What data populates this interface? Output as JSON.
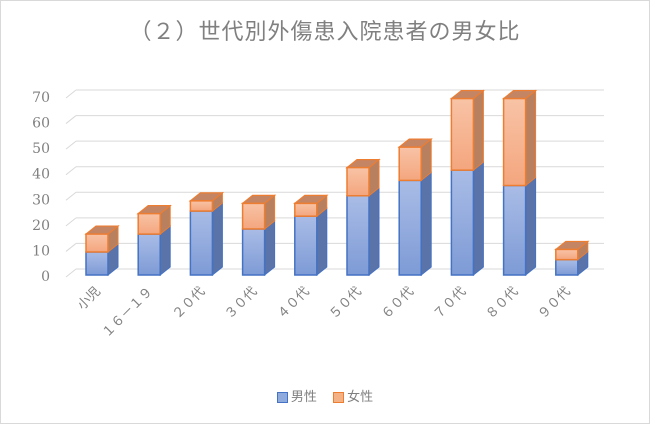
{
  "chart_data": {
    "type": "bar",
    "subtype": "stacked-3d-column",
    "title": "（２）世代別外傷患入院患者の男女比",
    "xlabel": "",
    "ylabel": "",
    "ylim": [
      0,
      70
    ],
    "yticks": [
      0,
      10,
      20,
      30,
      40,
      50,
      60,
      70
    ],
    "grid": true,
    "legend_position": "bottom",
    "categories": [
      "小児",
      "１６－１９",
      "２０代",
      "３０代",
      "４０代",
      "５０代",
      "６０代",
      "７０代",
      "８０代",
      "９０代"
    ],
    "series": [
      {
        "name": "男性",
        "color": "#8faadc",
        "values": [
          9,
          16,
          25,
          18,
          23,
          31,
          37,
          41,
          35,
          6
        ]
      },
      {
        "name": "女性",
        "color": "#f4b183",
        "values": [
          7,
          8,
          4,
          10,
          5,
          11,
          13,
          28,
          34,
          4
        ]
      }
    ]
  },
  "legend": {
    "male": "男性",
    "female": "女性"
  }
}
